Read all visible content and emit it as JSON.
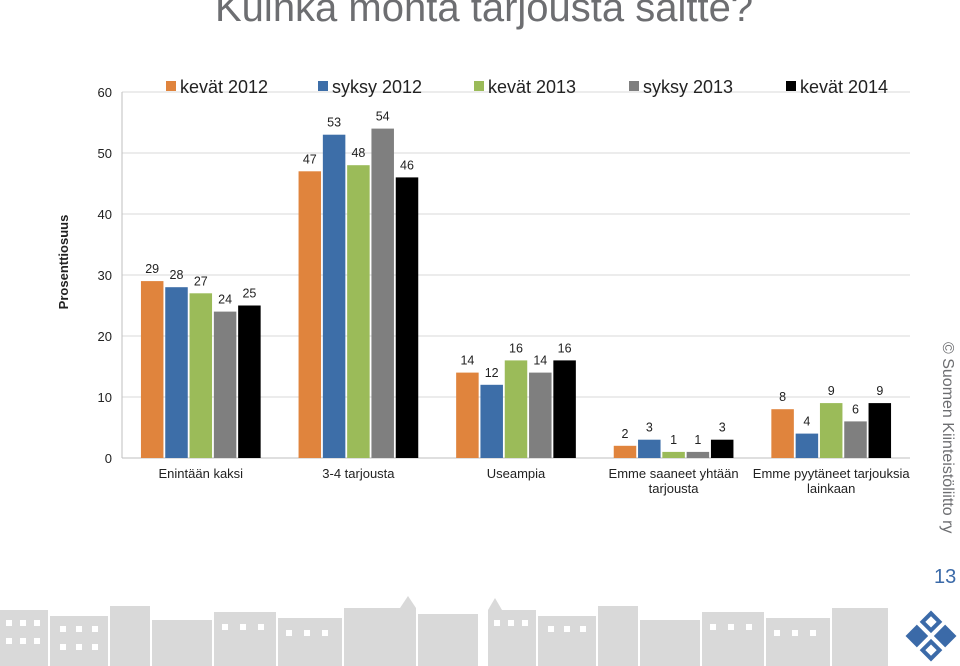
{
  "title": "Kuinka monta tarjousta saitte?",
  "footer": {
    "page_number": "13",
    "copyright": "© Suomen Kiinteistöliitto ry"
  },
  "colors": {
    "title": "#6d6e71",
    "accent": "#3b6aa8"
  },
  "chart_data": {
    "type": "bar",
    "title": "",
    "ylabel": "Prosenttiosuus",
    "xlabel": "",
    "ylim": [
      0,
      60
    ],
    "yticks": [
      0,
      10,
      20,
      30,
      40,
      50,
      60
    ],
    "grid": true,
    "legend_position": "top",
    "categories": [
      [
        "Enintään kaksi"
      ],
      [
        "3-4 tarjousta"
      ],
      [
        "Useampia"
      ],
      [
        "Emme saaneet yhtään",
        "tarjousta"
      ],
      [
        "Emme pyytäneet tarjouksia",
        "lainkaan"
      ]
    ],
    "series": [
      {
        "name": "kevät 2012",
        "color": "#e0843d",
        "values": [
          29,
          47,
          14,
          2,
          8
        ]
      },
      {
        "name": "syksy 2012",
        "color": "#3d6ea8",
        "values": [
          28,
          53,
          12,
          3,
          4
        ]
      },
      {
        "name": "kevät 2013",
        "color": "#9bbb59",
        "values": [
          27,
          48,
          16,
          1,
          9
        ]
      },
      {
        "name": "syksy 2013",
        "color": "#7f7f7f",
        "values": [
          24,
          54,
          14,
          1,
          6
        ]
      },
      {
        "name": "kevät 2014",
        "color": "#000000",
        "values": [
          25,
          46,
          16,
          3,
          9
        ]
      }
    ]
  }
}
